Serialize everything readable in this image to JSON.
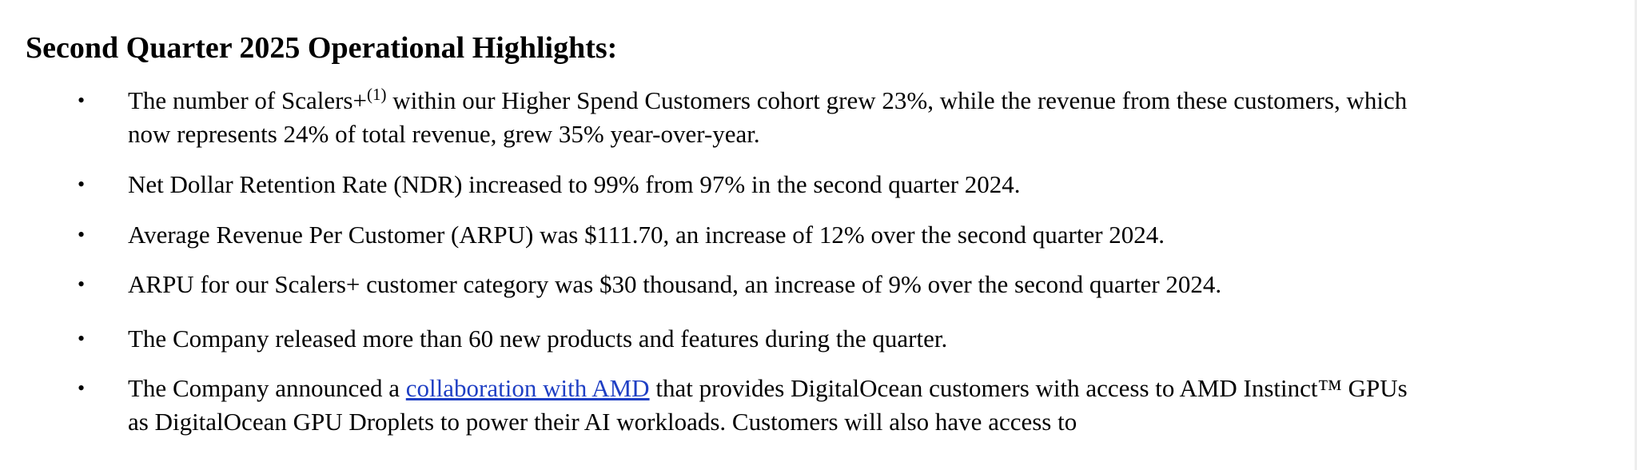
{
  "heading": "Second Quarter 2025 Operational Highlights:",
  "bullet_symbol": "•",
  "colors": {
    "text": "#000000",
    "link": "#1f3fc4",
    "background": "#ffffff"
  },
  "bullets": [
    {
      "line1_before_sup": "The number of Scalers+",
      "footnote_marker": "(1)",
      "line1_after_sup": " within our Higher Spend Customers cohort grew 23%, while the revenue from these customers, which",
      "line2": "now represents 24% of total revenue, grew 35% year-over-year."
    },
    {
      "text": "Net Dollar Retention Rate (NDR) increased to 99% from 97% in the second quarter 2024."
    },
    {
      "text": "Average Revenue Per Customer (ARPU) was $111.70, an increase of 12% over the second quarter 2024."
    },
    {
      "text": "ARPU for our Scalers+ customer category was $30 thousand, an increase of 9% over the second quarter 2024."
    },
    {
      "text": "The Company released more than 60 new products and features during the quarter."
    },
    {
      "line1_before_link": "The Company announced a ",
      "link_text": "collaboration with AMD",
      "line1_after_link": " that provides DigitalOcean customers with access to AMD Instinct™ GPUs",
      "line2": "as DigitalOcean GPU Droplets to power their AI workloads. Customers will also have access to"
    }
  ]
}
